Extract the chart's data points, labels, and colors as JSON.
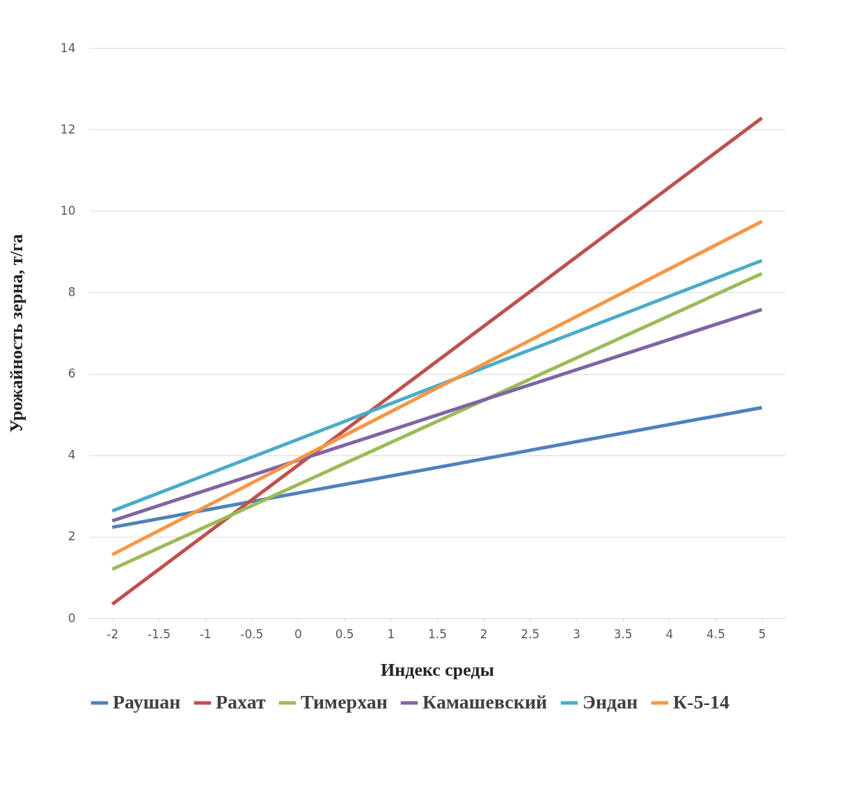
{
  "chart_data": {
    "type": "line",
    "xlabel": "Индекс среды",
    "ylabel": "Урожайность зерна, т/га",
    "x": [
      -2,
      5
    ],
    "xlim": [
      -2.25,
      5.25
    ],
    "xticks": [
      -2,
      -1.5,
      -1,
      -0.5,
      0,
      0.5,
      1,
      1.5,
      2,
      2.5,
      3,
      3.5,
      4,
      4.5,
      5
    ],
    "ylim": [
      0,
      14
    ],
    "yticks": [
      0,
      2,
      4,
      6,
      8,
      10,
      12,
      14
    ],
    "grid": "y",
    "legend": "bottom",
    "marker": "none",
    "line_style": "solid",
    "series": [
      {
        "name": "Раушан",
        "color": "#4f81bd",
        "values": [
          2.23,
          5.17
        ]
      },
      {
        "name": "Рахат",
        "color": "#c0504d",
        "values": [
          0.34,
          12.28
        ]
      },
      {
        "name": "Тимерхан",
        "color": "#9bbb59",
        "values": [
          1.2,
          8.46
        ]
      },
      {
        "name": "Камашевский",
        "color": "#8064a2",
        "values": [
          2.39,
          7.58
        ]
      },
      {
        "name": "Эндан",
        "color": "#4bacc6",
        "values": [
          2.63,
          8.78
        ]
      },
      {
        "name": "К-5-14",
        "color": "#f79646",
        "values": [
          1.56,
          9.74
        ]
      }
    ]
  }
}
